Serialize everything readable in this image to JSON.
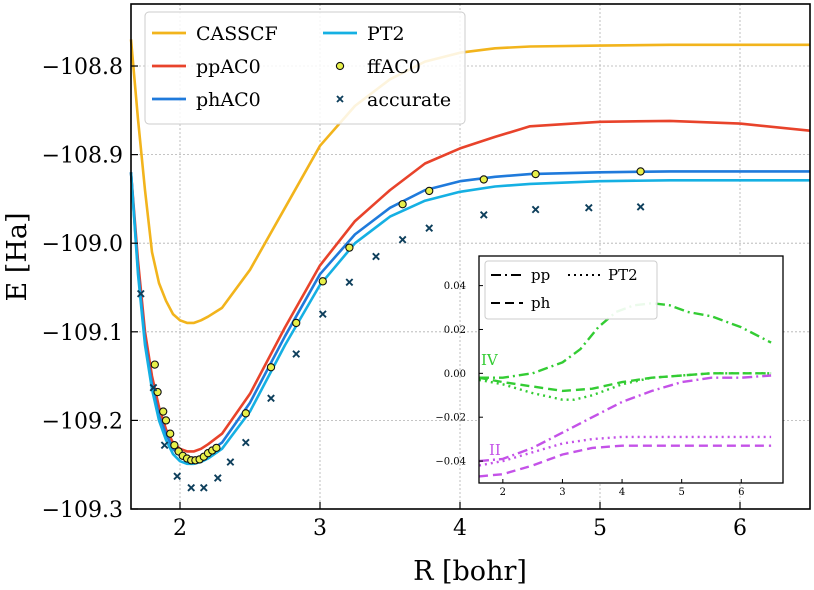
{
  "chart_data": [
    {
      "type": "line",
      "xlabel": "R [bohr]",
      "ylabel": "E [Ha]",
      "xlim": [
        1.65,
        6.5
      ],
      "ylim": [
        -109.3,
        -108.73
      ],
      "xticks": [
        2,
        3,
        4,
        5,
        6
      ],
      "xtick_labels": [
        "2",
        "3",
        "4",
        "5",
        "6"
      ],
      "yticks": [
        -109.3,
        -109.2,
        -109.1,
        -109.0,
        -108.9,
        -108.8
      ],
      "ytick_labels": [
        "−109.3",
        "−109.2",
        "−109.1",
        "−109.0",
        "−108.9",
        "−108.8"
      ],
      "grid": true,
      "legend_position": "top-left",
      "series": [
        {
          "name": "CASSCF",
          "style": "line",
          "color": "#f2b41c",
          "x": [
            1.65,
            1.7,
            1.75,
            1.8,
            1.85,
            1.9,
            1.95,
            2.0,
            2.05,
            2.1,
            2.15,
            2.2,
            2.3,
            2.5,
            2.75,
            3.0,
            3.25,
            3.5,
            3.75,
            4.0,
            4.25,
            4.5,
            5.0,
            5.5,
            6.0,
            6.5
          ],
          "y": [
            -108.77,
            -108.86,
            -108.94,
            -109.01,
            -109.045,
            -109.065,
            -109.08,
            -109.087,
            -109.09,
            -109.09,
            -109.087,
            -109.083,
            -109.073,
            -109.03,
            -108.96,
            -108.89,
            -108.845,
            -108.815,
            -108.795,
            -108.785,
            -108.78,
            -108.778,
            -108.777,
            -108.776,
            -108.776,
            -108.776
          ]
        },
        {
          "name": "ppAC0",
          "style": "line",
          "color": "#e8432b",
          "x": [
            1.65,
            1.7,
            1.75,
            1.8,
            1.85,
            1.9,
            1.95,
            2.0,
            2.05,
            2.1,
            2.15,
            2.2,
            2.3,
            2.5,
            2.75,
            3.0,
            3.25,
            3.5,
            3.75,
            4.0,
            4.25,
            4.5,
            5.0,
            5.5,
            6.0,
            6.5
          ],
          "y": [
            -108.92,
            -109.02,
            -109.1,
            -109.15,
            -109.185,
            -109.21,
            -109.225,
            -109.232,
            -109.235,
            -109.235,
            -109.232,
            -109.227,
            -109.215,
            -109.17,
            -109.095,
            -109.025,
            -108.975,
            -108.94,
            -108.91,
            -108.893,
            -108.88,
            -108.868,
            -108.863,
            -108.862,
            -108.865,
            -108.873
          ]
        },
        {
          "name": "phAC0",
          "style": "line",
          "color": "#1f7adb",
          "x": [
            1.65,
            1.7,
            1.75,
            1.8,
            1.85,
            1.9,
            1.95,
            2.0,
            2.05,
            2.1,
            2.15,
            2.2,
            2.3,
            2.5,
            2.75,
            3.0,
            3.25,
            3.5,
            3.75,
            4.0,
            4.25,
            4.5,
            5.0,
            5.5,
            6.0,
            6.5
          ],
          "y": [
            -108.92,
            -109.03,
            -109.11,
            -109.16,
            -109.195,
            -109.215,
            -109.232,
            -109.24,
            -109.243,
            -109.243,
            -109.241,
            -109.236,
            -109.225,
            -109.18,
            -109.105,
            -109.035,
            -108.99,
            -108.96,
            -108.94,
            -108.93,
            -108.925,
            -108.922,
            -108.92,
            -108.919,
            -108.919,
            -108.919
          ]
        },
        {
          "name": "PT2",
          "style": "line",
          "color": "#15b0e3",
          "x": [
            1.65,
            1.7,
            1.75,
            1.8,
            1.85,
            1.9,
            1.95,
            2.0,
            2.05,
            2.1,
            2.15,
            2.2,
            2.3,
            2.5,
            2.75,
            3.0,
            3.25,
            3.5,
            3.75,
            4.0,
            4.25,
            4.5,
            5.0,
            5.5,
            6.0,
            6.5
          ],
          "y": [
            -108.92,
            -109.035,
            -109.115,
            -109.165,
            -109.2,
            -109.222,
            -109.238,
            -109.246,
            -109.249,
            -109.249,
            -109.247,
            -109.243,
            -109.232,
            -109.19,
            -109.115,
            -109.047,
            -109.0,
            -108.97,
            -108.952,
            -108.942,
            -108.936,
            -108.933,
            -108.93,
            -108.929,
            -108.929,
            -108.929
          ]
        },
        {
          "name": "ffAC0",
          "style": "marker",
          "marker": "circle",
          "color": "#e8f04a",
          "x": [
            1.82,
            1.84,
            1.88,
            1.9,
            1.93,
            1.96,
            1.99,
            2.02,
            2.05,
            2.08,
            2.11,
            2.14,
            2.17,
            2.2,
            2.23,
            2.26,
            2.47,
            2.65,
            2.83,
            3.02,
            3.21,
            3.59,
            3.78,
            4.17,
            4.54,
            5.29
          ],
          "y": [
            -109.137,
            -109.168,
            -109.19,
            -109.2,
            -109.215,
            -109.228,
            -109.235,
            -109.24,
            -109.243,
            -109.245,
            -109.245,
            -109.244,
            -109.241,
            -109.237,
            -109.234,
            -109.231,
            -109.192,
            -109.14,
            -109.09,
            -109.043,
            -109.005,
            -108.956,
            -108.941,
            -108.928,
            -108.922,
            -108.919
          ]
        },
        {
          "name": "accurate",
          "style": "marker",
          "marker": "x",
          "color": "#0e3f5c",
          "x": [
            1.72,
            1.81,
            1.89,
            1.98,
            2.08,
            2.17,
            2.27,
            2.36,
            2.47,
            2.65,
            2.83,
            3.02,
            3.21,
            3.4,
            3.59,
            3.78,
            4.17,
            4.54,
            4.92,
            5.29
          ],
          "y": [
            -109.057,
            -109.163,
            -109.228,
            -109.263,
            -109.276,
            -109.276,
            -109.265,
            -109.247,
            -109.225,
            -109.175,
            -109.125,
            -109.08,
            -109.044,
            -109.015,
            -108.996,
            -108.983,
            -108.968,
            -108.962,
            -108.96,
            -108.959
          ]
        }
      ]
    },
    {
      "type": "line",
      "xlim": [
        1.6,
        6.7
      ],
      "ylim": [
        -0.05,
        0.0535
      ],
      "xticks": [
        2,
        3,
        4,
        5,
        6
      ],
      "xtick_labels": [
        "2",
        "3",
        "4",
        "5",
        "6"
      ],
      "yticks": [
        -0.04,
        -0.02,
        0.0,
        0.02,
        0.04
      ],
      "ytick_labels": [
        "−0.04",
        "−0.02",
        "0.00",
        "0.02",
        "0.04"
      ],
      "legend_position": "top-left",
      "legend": [
        {
          "label": "pp",
          "dash": "dashdot"
        },
        {
          "label": "ph",
          "dash": "dashed"
        },
        {
          "label": "PT2",
          "dash": "dotted"
        }
      ],
      "annotations": [
        {
          "text": "IV",
          "color": "#33cc33"
        },
        {
          "text": "II",
          "color": "#c452e8"
        }
      ],
      "series": [
        {
          "name": "IV pp",
          "color": "#33cc33",
          "dash": "dashdot",
          "x": [
            1.6,
            2.0,
            2.5,
            3.0,
            3.3,
            3.6,
            3.9,
            4.2,
            4.5,
            4.8,
            5.1,
            5.5,
            6.0,
            6.5
          ],
          "y": [
            -0.002,
            -0.002,
            0.0,
            0.005,
            0.011,
            0.021,
            0.028,
            0.031,
            0.032,
            0.031,
            0.028,
            0.026,
            0.021,
            0.014
          ]
        },
        {
          "name": "IV ph",
          "color": "#33cc33",
          "dash": "dashed",
          "x": [
            1.6,
            2.0,
            2.5,
            3.0,
            3.5,
            4.0,
            4.5,
            5.0,
            5.5,
            6.0,
            6.5
          ],
          "y": [
            -0.002,
            -0.004,
            -0.006,
            -0.008,
            -0.007,
            -0.004,
            -0.002,
            -0.001,
            0.0,
            0.0,
            0.0
          ]
        },
        {
          "name": "IV PT2",
          "color": "#33cc33",
          "dash": "dotted",
          "x": [
            1.6,
            2.0,
            2.5,
            3.0,
            3.2,
            3.5,
            4.0,
            4.5,
            5.0,
            5.5,
            6.0,
            6.5
          ],
          "y": [
            -0.003,
            -0.005,
            -0.009,
            -0.012,
            -0.012,
            -0.01,
            -0.005,
            -0.002,
            -0.001,
            0.0,
            0.0,
            0.0
          ]
        },
        {
          "name": "II pp",
          "color": "#c452e8",
          "dash": "dashdot",
          "x": [
            1.6,
            2.0,
            2.5,
            3.0,
            3.5,
            4.0,
            4.5,
            5.0,
            5.5,
            6.0,
            6.5
          ],
          "y": [
            -0.04,
            -0.039,
            -0.034,
            -0.027,
            -0.02,
            -0.013,
            -0.008,
            -0.004,
            -0.002,
            -0.002,
            -0.001
          ]
        },
        {
          "name": "II ph",
          "color": "#c452e8",
          "dash": "dashed",
          "x": [
            1.6,
            2.0,
            2.5,
            3.0,
            3.5,
            4.0,
            4.5,
            5.0,
            5.5,
            6.0,
            6.5
          ],
          "y": [
            -0.047,
            -0.046,
            -0.042,
            -0.037,
            -0.034,
            -0.033,
            -0.033,
            -0.033,
            -0.033,
            -0.033,
            -0.033
          ]
        },
        {
          "name": "II PT2",
          "color": "#c452e8",
          "dash": "dotted",
          "x": [
            1.6,
            2.0,
            2.5,
            3.0,
            3.5,
            4.0,
            4.5,
            5.0,
            5.5,
            6.0,
            6.5
          ],
          "y": [
            -0.042,
            -0.04,
            -0.036,
            -0.032,
            -0.03,
            -0.029,
            -0.029,
            -0.029,
            -0.029,
            -0.029,
            -0.029
          ]
        }
      ]
    }
  ]
}
